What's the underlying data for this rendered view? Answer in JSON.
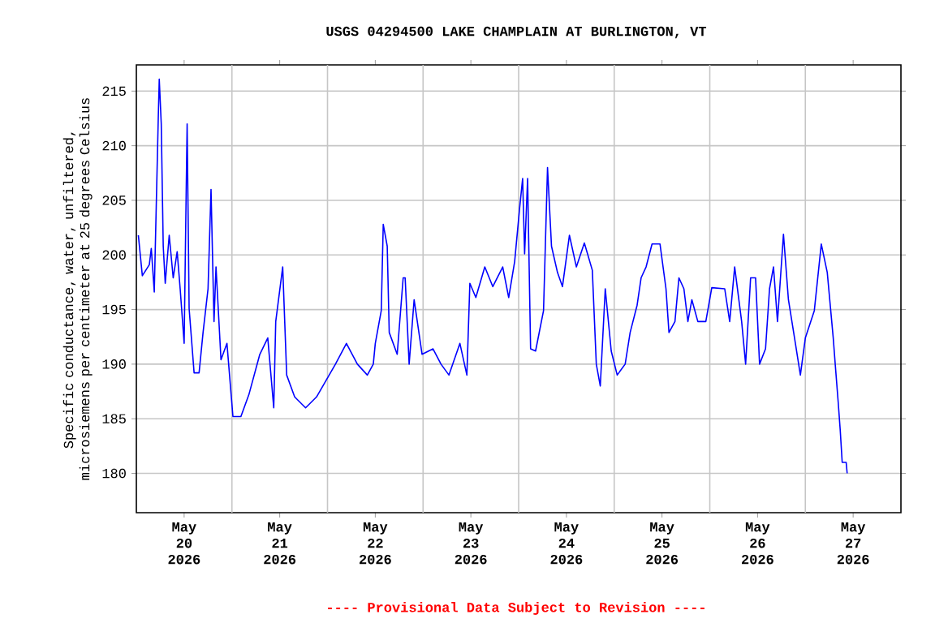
{
  "chart_data": {
    "type": "line",
    "title": "USGS 04294500 LAKE CHAMPLAIN AT BURLINGTON, VT",
    "ylabel": "Specific conductance, water, unfiltered, microsiemens per centimeter at 25 degrees Celsius",
    "annotations": [
      "---- Provisional Data Subject to Revision ----"
    ],
    "grid": true,
    "xlim": [
      "2026-05-20",
      "2026-05-28"
    ],
    "xticks": [
      {
        "value": "2026-05-20T12:00",
        "label": "May 20 2026"
      },
      {
        "value": "2026-05-21",
        "label": null
      },
      {
        "value": "2026-05-21T12:00",
        "label": "May 21 2026"
      },
      {
        "value": "2026-05-22",
        "label": null
      },
      {
        "value": "2026-05-22T12:00",
        "label": "May 22 2026"
      },
      {
        "value": "2026-05-23",
        "label": null
      },
      {
        "value": "2026-05-23T12:00",
        "label": "May 23 2026"
      },
      {
        "value": "2026-05-24",
        "label": null
      },
      {
        "value": "2026-05-24T12:00",
        "label": "May 24 2026"
      },
      {
        "value": "2026-05-25",
        "label": null
      },
      {
        "value": "2026-05-25T12:00",
        "label": "May 25 2026"
      },
      {
        "value": "2026-05-26",
        "label": null
      },
      {
        "value": "2026-05-26T12:00",
        "label": "May 26 2026"
      },
      {
        "value": "2026-05-27",
        "label": null
      },
      {
        "value": "2026-05-27T12:00",
        "label": "May 27 2026"
      }
    ],
    "ylim": [
      176.4,
      217.4
    ],
    "yticks": [
      180,
      185,
      190,
      195,
      200,
      205,
      210,
      215
    ],
    "series": [
      {
        "color": "#0000ff",
        "x": [
          "2026-05-20T00:30",
          "2026-05-20T01:30",
          "2026-05-20T03:15",
          "2026-05-20T03:45",
          "2026-05-20T04:30",
          "2026-05-20T05:30",
          "2026-05-20T05:45",
          "2026-05-20T06:15",
          "2026-05-20T06:45",
          "2026-05-20T07:15",
          "2026-05-20T08:15",
          "2026-05-20T09:15",
          "2026-05-20T10:15",
          "2026-05-20T11:00",
          "2026-05-20T12:00",
          "2026-05-20T12:30",
          "2026-05-20T12:45",
          "2026-05-20T13:15",
          "2026-05-20T14:30",
          "2026-05-20T15:45",
          "2026-05-20T16:45",
          "2026-05-20T18:00",
          "2026-05-20T18:45",
          "2026-05-20T19:30",
          "2026-05-20T20:00",
          "2026-05-20T21:15",
          "2026-05-20T22:45",
          "2026-05-21T00:15",
          "2026-05-21T02:15",
          "2026-05-21T04:15",
          "2026-05-21T07:00",
          "2026-05-21T09:00",
          "2026-05-21T10:30",
          "2026-05-21T11:00",
          "2026-05-21T12:45",
          "2026-05-21T13:45",
          "2026-05-21T15:45",
          "2026-05-21T18:30",
          "2026-05-21T21:15",
          "2026-05-22T02:00",
          "2026-05-22T04:45",
          "2026-05-22T07:30",
          "2026-05-22T10:00",
          "2026-05-22T11:30",
          "2026-05-22T12:00",
          "2026-05-22T13:30",
          "2026-05-22T14:00",
          "2026-05-22T15:00",
          "2026-05-22T15:30",
          "2026-05-22T17:30",
          "2026-05-22T19:00",
          "2026-05-22T19:30",
          "2026-05-22T20:30",
          "2026-05-22T21:45",
          "2026-05-22T23:45",
          "2026-05-23T02:30",
          "2026-05-23T04:30",
          "2026-05-23T06:30",
          "2026-05-23T09:15",
          "2026-05-23T11:00",
          "2026-05-23T11:45",
          "2026-05-23T13:15",
          "2026-05-23T15:30",
          "2026-05-23T17:30",
          "2026-05-23T20:00",
          "2026-05-23T21:30",
          "2026-05-23T23:00",
          "2026-05-24T00:15",
          "2026-05-24T01:00",
          "2026-05-24T01:30",
          "2026-05-24T02:15",
          "2026-05-24T03:00",
          "2026-05-24T04:15",
          "2026-05-24T06:15",
          "2026-05-24T07:15",
          "2026-05-24T08:15",
          "2026-05-24T09:45",
          "2026-05-24T11:00",
          "2026-05-24T12:45",
          "2026-05-24T14:30",
          "2026-05-24T16:30",
          "2026-05-24T18:30",
          "2026-05-24T19:30",
          "2026-05-24T20:30",
          "2026-05-24T21:45",
          "2026-05-24T23:15",
          "2026-05-25T00:45",
          "2026-05-25T02:45",
          "2026-05-25T04:00",
          "2026-05-25T05:45",
          "2026-05-25T06:45",
          "2026-05-25T08:00",
          "2026-05-25T09:30",
          "2026-05-25T11:30",
          "2026-05-25T13:00",
          "2026-05-25T13:45",
          "2026-05-25T15:15",
          "2026-05-25T16:15",
          "2026-05-25T17:30",
          "2026-05-25T18:30",
          "2026-05-25T19:30",
          "2026-05-25T21:00",
          "2026-05-25T23:00",
          "2026-05-26T00:30",
          "2026-05-26T03:45",
          "2026-05-26T05:00",
          "2026-05-26T06:15",
          "2026-05-26T08:00",
          "2026-05-26T09:00",
          "2026-05-26T10:15",
          "2026-05-26T11:30",
          "2026-05-26T12:30",
          "2026-05-26T14:00",
          "2026-05-26T15:00",
          "2026-05-26T16:00",
          "2026-05-26T17:00",
          "2026-05-26T18:30",
          "2026-05-26T19:45",
          "2026-05-26T21:30",
          "2026-05-26T22:45",
          "2026-05-27T00:00",
          "2026-05-27T02:15",
          "2026-05-27T04:00",
          "2026-05-27T05:30",
          "2026-05-27T07:00",
          "2026-05-27T07:30",
          "2026-05-27T08:15",
          "2026-05-27T08:45",
          "2026-05-27T09:15",
          "2026-05-27T10:15",
          "2026-05-27T10:30"
        ],
        "values": [
          201.8,
          198.1,
          199.1,
          200.6,
          196.6,
          212.5,
          216.1,
          212.0,
          200.8,
          197.4,
          201.8,
          197.9,
          200.3,
          196.9,
          191.9,
          205.5,
          212.0,
          195.1,
          189.2,
          189.2,
          192.9,
          196.9,
          206.0,
          193.9,
          198.9,
          190.4,
          191.9,
          185.2,
          185.2,
          187.2,
          190.9,
          192.4,
          186.0,
          193.9,
          198.9,
          189.0,
          187.0,
          186.0,
          187.0,
          190.0,
          191.9,
          190.0,
          189.0,
          190.0,
          191.9,
          194.9,
          202.8,
          200.8,
          192.9,
          190.9,
          197.9,
          197.9,
          190.0,
          195.9,
          190.9,
          191.4,
          190.0,
          189.0,
          191.9,
          189.0,
          197.4,
          196.1,
          198.9,
          197.1,
          198.9,
          196.1,
          199.4,
          204.3,
          207.0,
          200.1,
          207.0,
          191.4,
          191.2,
          194.9,
          208.0,
          200.8,
          198.4,
          197.1,
          201.8,
          198.9,
          201.1,
          198.6,
          190.0,
          188.0,
          196.9,
          191.2,
          189.0,
          190.0,
          192.9,
          195.4,
          197.9,
          198.9,
          201.0,
          201.0,
          196.9,
          192.9,
          193.9,
          197.9,
          196.9,
          193.9,
          195.9,
          193.9,
          193.9,
          197.0,
          196.9,
          193.9,
          198.9,
          193.9,
          190.0,
          197.9,
          197.9,
          190.0,
          191.4,
          196.9,
          198.9,
          193.9,
          201.9,
          195.9,
          191.9,
          189.0,
          192.4,
          194.9,
          201.0,
          198.4,
          192.4,
          190.0,
          186.5,
          184.0,
          181.0,
          181.0,
          180.0
        ]
      }
    ]
  }
}
